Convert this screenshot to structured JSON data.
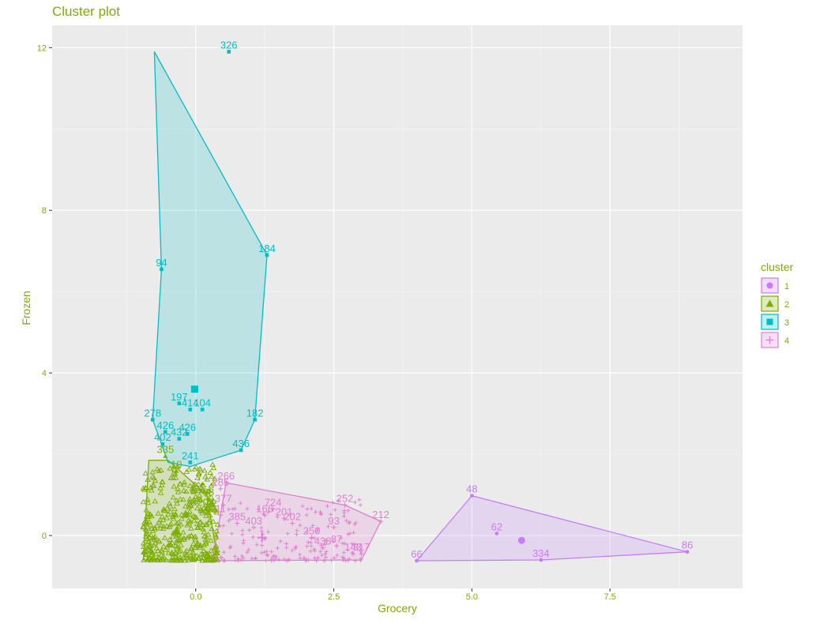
{
  "chart_data": {
    "type": "scatter",
    "title": "Cluster plot",
    "xlabel": "Grocery",
    "ylabel": "Frozen",
    "xlim": [
      -2.6,
      9.9
    ],
    "ylim": [
      -1.3,
      12.55
    ],
    "x_ticks": [
      0.0,
      2.5,
      5.0,
      7.5
    ],
    "x_tick_labels": [
      "0.0",
      "2.5",
      "5.0",
      "7.5"
    ],
    "y_ticks": [
      0,
      4,
      8,
      12
    ],
    "y_tick_labels": [
      "0",
      "4",
      "8",
      "12"
    ],
    "grid": true,
    "legend": {
      "title": "cluster",
      "position": "right"
    },
    "colors": {
      "1": "#c77cff",
      "2": "#7cae00",
      "3": "#00bfc4",
      "4": "#e07fd0"
    },
    "clusters": [
      {
        "name": "1",
        "marker": "circle",
        "hull": [
          [
            4.0,
            -0.62
          ],
          [
            5.0,
            0.98
          ],
          [
            8.9,
            -0.4
          ],
          [
            6.25,
            -0.6
          ]
        ],
        "points": [
          {
            "id": "48",
            "x": 5.0,
            "y": 0.98
          },
          {
            "id": "62",
            "x": 5.45,
            "y": 0.05
          },
          {
            "id": "66",
            "x": 4.0,
            "y": -0.62
          },
          {
            "id": "86",
            "x": 8.9,
            "y": -0.4
          },
          {
            "id": "334",
            "x": 6.25,
            "y": -0.6
          }
        ],
        "centroid": [
          5.9,
          -0.12
        ]
      },
      {
        "name": "2",
        "marker": "triangle",
        "hull": [
          [
            -0.95,
            -0.6
          ],
          [
            -0.85,
            1.85
          ],
          [
            -0.5,
            1.85
          ],
          [
            0.2,
            1.0
          ],
          [
            0.4,
            -0.6
          ]
        ],
        "points": [
          {
            "id": "335",
            "x": -0.55,
            "y": 1.95
          },
          {
            "id": "74",
            "x": 0.12,
            "y": 1.27
          },
          {
            "id": "88",
            "x": 0.23,
            "y": 0.9
          },
          {
            "id": "203",
            "x": 0.18,
            "y": 0.65
          },
          {
            "id": "10",
            "x": -0.35,
            "y": 1.58
          }
        ],
        "centroid": [
          -0.35,
          0.1
        ]
      },
      {
        "name": "3",
        "marker": "square",
        "hull": [
          [
            -0.75,
            11.9
          ],
          [
            -0.62,
            6.55
          ],
          [
            -0.78,
            2.85
          ],
          [
            -0.5,
            1.8
          ],
          [
            -0.1,
            1.7
          ],
          [
            0.82,
            2.1
          ],
          [
            1.07,
            2.85
          ],
          [
            1.29,
            6.9
          ]
        ],
        "points": [
          {
            "id": "326",
            "x": 0.6,
            "y": 11.9
          },
          {
            "id": "94",
            "x": -0.62,
            "y": 6.55
          },
          {
            "id": "184",
            "x": 1.29,
            "y": 6.9
          },
          {
            "id": "197",
            "x": -0.3,
            "y": 3.25
          },
          {
            "id": "414",
            "x": -0.1,
            "y": 3.1
          },
          {
            "id": "104",
            "x": 0.12,
            "y": 3.1
          },
          {
            "id": "278",
            "x": -0.78,
            "y": 2.85
          },
          {
            "id": "182",
            "x": 1.07,
            "y": 2.85
          },
          {
            "id": "426",
            "x": -0.55,
            "y": 2.55
          },
          {
            "id": "426",
            "x": -0.15,
            "y": 2.5
          },
          {
            "id": "432",
            "x": -0.3,
            "y": 2.38
          },
          {
            "id": "402",
            "x": -0.6,
            "y": 2.25
          },
          {
            "id": "436",
            "x": 0.82,
            "y": 2.1
          },
          {
            "id": "241",
            "x": -0.1,
            "y": 1.8
          }
        ],
        "centroid": [
          -0.02,
          3.6
        ]
      },
      {
        "name": "4",
        "marker": "cross",
        "hull": [
          [
            0.3,
            -0.62
          ],
          [
            0.55,
            1.3
          ],
          [
            2.7,
            0.75
          ],
          [
            3.35,
            0.35
          ],
          [
            3.0,
            -0.6
          ]
        ],
        "points": [
          {
            "id": "266",
            "x": 0.55,
            "y": 1.3
          },
          {
            "id": "285",
            "x": 0.45,
            "y": 1.15
          },
          {
            "id": "252",
            "x": 2.7,
            "y": 0.75
          },
          {
            "id": "212",
            "x": 3.35,
            "y": 0.35
          },
          {
            "id": "377",
            "x": 0.5,
            "y": 0.75
          },
          {
            "id": "11",
            "x": 0.45,
            "y": 0.5
          },
          {
            "id": "724",
            "x": 1.4,
            "y": 0.65
          },
          {
            "id": "166",
            "x": 1.25,
            "y": 0.5
          },
          {
            "id": "201",
            "x": 1.6,
            "y": 0.42
          },
          {
            "id": "202",
            "x": 1.75,
            "y": 0.3
          },
          {
            "id": "93",
            "x": 2.5,
            "y": 0.2
          },
          {
            "id": "403",
            "x": 1.05,
            "y": 0.2
          },
          {
            "id": "385",
            "x": 0.75,
            "y": 0.3
          },
          {
            "id": "250",
            "x": 2.1,
            "y": -0.05
          },
          {
            "id": "87",
            "x": 2.55,
            "y": -0.25
          },
          {
            "id": "438",
            "x": 2.3,
            "y": -0.3
          },
          {
            "id": "143",
            "x": 2.85,
            "y": -0.45
          },
          {
            "id": "317",
            "x": 3.0,
            "y": -0.45
          }
        ],
        "centroid": [
          1.2,
          -0.05
        ]
      }
    ]
  }
}
